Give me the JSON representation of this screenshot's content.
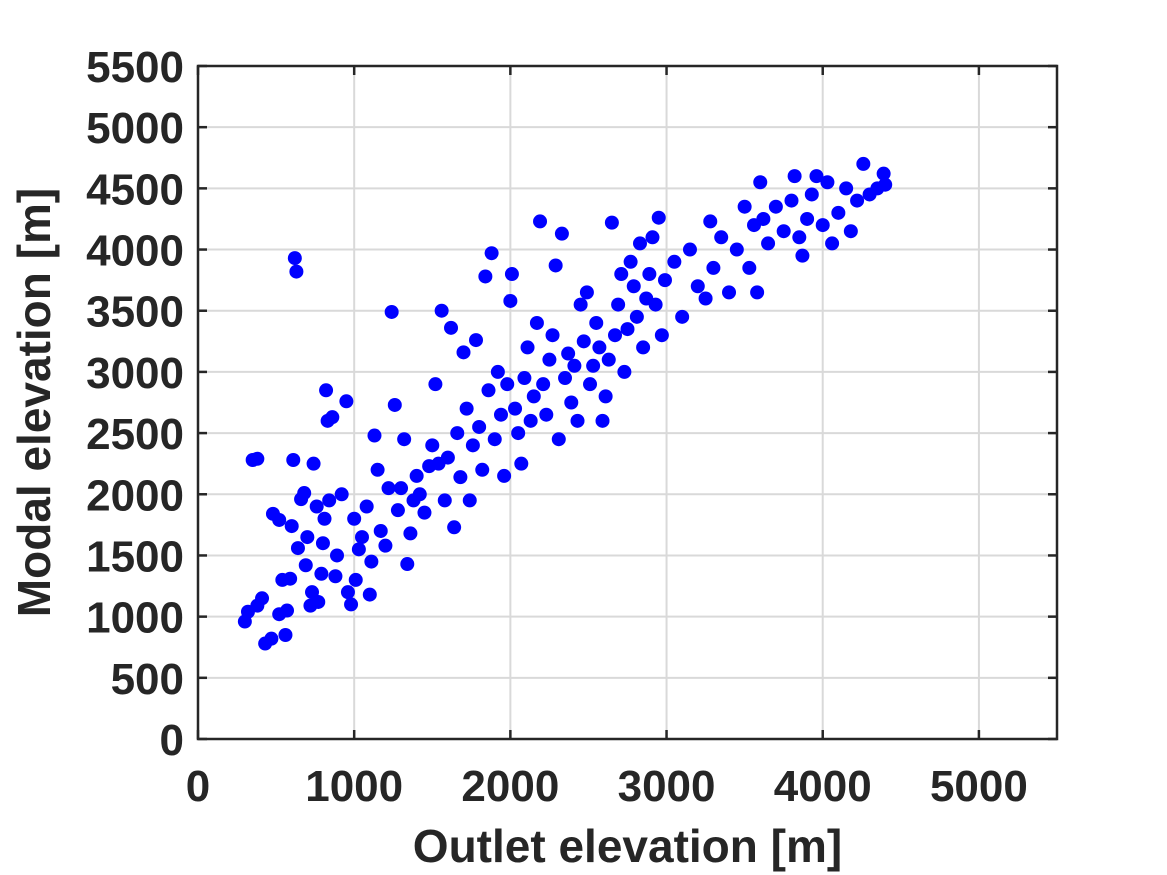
{
  "chart_data": {
    "type": "scatter",
    "title": "",
    "xlabel": "Outlet elevation [m]",
    "ylabel": "Modal elevation [m]",
    "xlim": [
      0,
      5500
    ],
    "ylim": [
      0,
      5500
    ],
    "x_ticks": [
      "0",
      "1000",
      "2000",
      "3000",
      "4000",
      "5000"
    ],
    "y_ticks": [
      "0",
      "500",
      "1000",
      "1500",
      "2000",
      "2500",
      "3000",
      "3500",
      "4000",
      "4500",
      "5000",
      "5500"
    ],
    "grid": true,
    "marker_color": "#0000ff",
    "series": [
      {
        "points": [
          [
            300,
            960
          ],
          [
            320,
            1040
          ],
          [
            380,
            1090
          ],
          [
            430,
            780
          ],
          [
            470,
            820
          ],
          [
            520,
            1020
          ],
          [
            560,
            850
          ],
          [
            350,
            2280
          ],
          [
            380,
            2290
          ],
          [
            410,
            1150
          ],
          [
            480,
            1840
          ],
          [
            520,
            1790
          ],
          [
            540,
            1300
          ],
          [
            570,
            1050
          ],
          [
            590,
            1310
          ],
          [
            600,
            1740
          ],
          [
            610,
            2280
          ],
          [
            620,
            3930
          ],
          [
            630,
            3820
          ],
          [
            640,
            1560
          ],
          [
            660,
            1960
          ],
          [
            680,
            2010
          ],
          [
            690,
            1420
          ],
          [
            700,
            1650
          ],
          [
            720,
            1090
          ],
          [
            730,
            1200
          ],
          [
            740,
            2250
          ],
          [
            760,
            1900
          ],
          [
            770,
            1120
          ],
          [
            790,
            1350
          ],
          [
            800,
            1600
          ],
          [
            810,
            1800
          ],
          [
            820,
            2850
          ],
          [
            830,
            2600
          ],
          [
            840,
            1950
          ],
          [
            860,
            2630
          ],
          [
            880,
            1330
          ],
          [
            890,
            1500
          ],
          [
            920,
            2000
          ],
          [
            950,
            2760
          ],
          [
            960,
            1200
          ],
          [
            980,
            1100
          ],
          [
            1000,
            1800
          ],
          [
            1010,
            1300
          ],
          [
            1030,
            1550
          ],
          [
            1050,
            1650
          ],
          [
            1080,
            1900
          ],
          [
            1100,
            1180
          ],
          [
            1110,
            1450
          ],
          [
            1130,
            2480
          ],
          [
            1150,
            2200
          ],
          [
            1170,
            1700
          ],
          [
            1200,
            1580
          ],
          [
            1220,
            2050
          ],
          [
            1240,
            3490
          ],
          [
            1260,
            2730
          ],
          [
            1280,
            1870
          ],
          [
            1300,
            2050
          ],
          [
            1320,
            2450
          ],
          [
            1340,
            1430
          ],
          [
            1360,
            1680
          ],
          [
            1380,
            1950
          ],
          [
            1400,
            2150
          ],
          [
            1420,
            2000
          ],
          [
            1450,
            1850
          ],
          [
            1480,
            2230
          ],
          [
            1500,
            2400
          ],
          [
            1520,
            2900
          ],
          [
            1540,
            2250
          ],
          [
            1560,
            3500
          ],
          [
            1580,
            1950
          ],
          [
            1600,
            2300
          ],
          [
            1620,
            3360
          ],
          [
            1640,
            1730
          ],
          [
            1660,
            2500
          ],
          [
            1680,
            2140
          ],
          [
            1700,
            3160
          ],
          [
            1720,
            2700
          ],
          [
            1740,
            1950
          ],
          [
            1760,
            2400
          ],
          [
            1780,
            3260
          ],
          [
            1800,
            2550
          ],
          [
            1820,
            2200
          ],
          [
            1840,
            3780
          ],
          [
            1860,
            2850
          ],
          [
            1880,
            3970
          ],
          [
            1900,
            2450
          ],
          [
            1920,
            3000
          ],
          [
            1940,
            2650
          ],
          [
            1960,
            2150
          ],
          [
            1980,
            2900
          ],
          [
            2000,
            3580
          ],
          [
            2010,
            3800
          ],
          [
            2030,
            2700
          ],
          [
            2050,
            2500
          ],
          [
            2070,
            2250
          ],
          [
            2090,
            2950
          ],
          [
            2110,
            3200
          ],
          [
            2130,
            2600
          ],
          [
            2150,
            2800
          ],
          [
            2170,
            3400
          ],
          [
            2190,
            4230
          ],
          [
            2210,
            2900
          ],
          [
            2230,
            2650
          ],
          [
            2250,
            3100
          ],
          [
            2270,
            3300
          ],
          [
            2290,
            3870
          ],
          [
            2310,
            2450
          ],
          [
            2330,
            4130
          ],
          [
            2350,
            2950
          ],
          [
            2370,
            3150
          ],
          [
            2390,
            2750
          ],
          [
            2410,
            3050
          ],
          [
            2430,
            2600
          ],
          [
            2450,
            3550
          ],
          [
            2470,
            3250
          ],
          [
            2490,
            3650
          ],
          [
            2510,
            2900
          ],
          [
            2530,
            3050
          ],
          [
            2550,
            3400
          ],
          [
            2570,
            3200
          ],
          [
            2590,
            2600
          ],
          [
            2610,
            2800
          ],
          [
            2630,
            3100
          ],
          [
            2650,
            4220
          ],
          [
            2670,
            3300
          ],
          [
            2690,
            3550
          ],
          [
            2710,
            3800
          ],
          [
            2730,
            3000
          ],
          [
            2750,
            3350
          ],
          [
            2770,
            3900
          ],
          [
            2790,
            3700
          ],
          [
            2810,
            3450
          ],
          [
            2830,
            4050
          ],
          [
            2850,
            3200
          ],
          [
            2870,
            3600
          ],
          [
            2890,
            3800
          ],
          [
            2910,
            4100
          ],
          [
            2930,
            3550
          ],
          [
            2950,
            4260
          ],
          [
            2970,
            3300
          ],
          [
            2990,
            3750
          ],
          [
            3050,
            3900
          ],
          [
            3100,
            3450
          ],
          [
            3150,
            4000
          ],
          [
            3200,
            3700
          ],
          [
            3250,
            3600
          ],
          [
            3280,
            4230
          ],
          [
            3300,
            3850
          ],
          [
            3350,
            4100
          ],
          [
            3400,
            3650
          ],
          [
            3450,
            4000
          ],
          [
            3500,
            4350
          ],
          [
            3530,
            3850
          ],
          [
            3560,
            4200
          ],
          [
            3580,
            3650
          ],
          [
            3600,
            4550
          ],
          [
            3620,
            4250
          ],
          [
            3650,
            4050
          ],
          [
            3700,
            4350
          ],
          [
            3750,
            4150
          ],
          [
            3800,
            4400
          ],
          [
            3820,
            4600
          ],
          [
            3850,
            4100
          ],
          [
            3870,
            3950
          ],
          [
            3900,
            4250
          ],
          [
            3930,
            4450
          ],
          [
            3960,
            4600
          ],
          [
            4000,
            4200
          ],
          [
            4030,
            4550
          ],
          [
            4060,
            4050
          ],
          [
            4100,
            4300
          ],
          [
            4150,
            4500
          ],
          [
            4180,
            4150
          ],
          [
            4220,
            4400
          ],
          [
            4260,
            4700
          ],
          [
            4300,
            4450
          ],
          [
            4350,
            4500
          ],
          [
            4390,
            4620
          ],
          [
            4400,
            4530
          ]
        ]
      }
    ]
  }
}
